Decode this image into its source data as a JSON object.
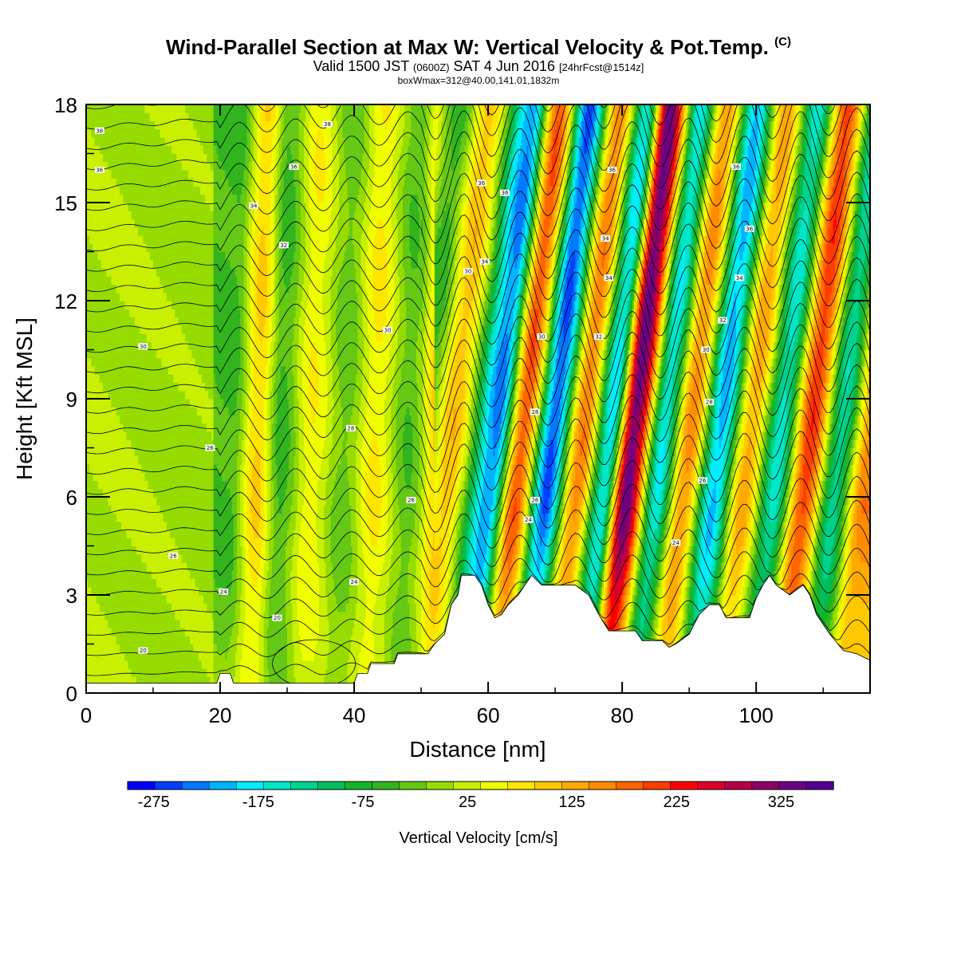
{
  "header": {
    "title": "Wind-Parallel Section at Max W: Vertical Velocity & Pot.Temp.",
    "copyright_mark": "(C)",
    "subtitle_a": "Valid 1500 JST",
    "subtitle_b": "(0600Z)",
    "subtitle_c": "SAT 4 Jun 2016",
    "subtitle_d": "[24hrFcst@1514z]",
    "subtitle_line3": "boxWmax=312@40.00,141.01,1832m"
  },
  "chart_data": {
    "type": "heatmap",
    "xlabel": "Distance [nm]",
    "ylabel": "Height [Kft MSL]",
    "xlim": [
      0,
      117
    ],
    "ylim": [
      0,
      18
    ],
    "x_ticks": [
      "0",
      "20",
      "40",
      "60",
      "80",
      "100"
    ],
    "y_ticks": [
      "0",
      "3",
      "6",
      "9",
      "12",
      "15",
      "18"
    ],
    "colorbar": {
      "label": "Vertical Velocity [cm/s]",
      "orientation": "horizontal",
      "range": [
        -300,
        375
      ],
      "step": 25,
      "tick_labels": [
        "-275",
        "-175",
        "-75",
        "25",
        "125",
        "225",
        "325"
      ],
      "colors": [
        "#0000ff",
        "#0040ff",
        "#0078ff",
        "#00b4ff",
        "#00ecff",
        "#00e6c8",
        "#00d28c",
        "#00be5a",
        "#14b428",
        "#32b41e",
        "#64c814",
        "#96dc00",
        "#c8f000",
        "#f0ff00",
        "#ffe600",
        "#ffc800",
        "#ffaa00",
        "#ff8c00",
        "#ff6400",
        "#ff3c00",
        "#ff0000",
        "#dc0028",
        "#b40046",
        "#8c0064",
        "#6e0082",
        "#550096"
      ]
    },
    "vertical_velocity_bands": [
      {
        "x": 0,
        "w": -5
      },
      {
        "x": 21,
        "w": -75
      },
      {
        "x": 25,
        "w": 100
      },
      {
        "x": 28.5,
        "w": -75
      },
      {
        "x": 33,
        "w": 60
      },
      {
        "x": 38,
        "w": -50
      },
      {
        "x": 42.5,
        "w": 70
      },
      {
        "x": 47.5,
        "w": -60
      },
      {
        "x": 52,
        "w": 90
      },
      {
        "x": 58.5,
        "w": -230
      },
      {
        "x": 62.5,
        "w": 170
      },
      {
        "x": 67,
        "w": -250
      },
      {
        "x": 71.5,
        "w": 140
      },
      {
        "x": 75.5,
        "w": -180
      },
      {
        "x": 79,
        "w": 312
      },
      {
        "x": 83.5,
        "w": -170
      },
      {
        "x": 87.5,
        "w": 130
      },
      {
        "x": 92,
        "w": -210
      },
      {
        "x": 96.5,
        "w": 110
      },
      {
        "x": 101,
        "w": -160
      },
      {
        "x": 105.5,
        "w": 190
      },
      {
        "x": 110,
        "w": -140
      },
      {
        "x": 114.5,
        "w": 140
      }
    ],
    "terrain_profile": [
      [
        0,
        0.3
      ],
      [
        19.5,
        0.3
      ],
      [
        20,
        0.6
      ],
      [
        21.5,
        0.6
      ],
      [
        22,
        0.3
      ],
      [
        40,
        0.3
      ],
      [
        40.5,
        0.6
      ],
      [
        42,
        0.6
      ],
      [
        42.5,
        0.9
      ],
      [
        46,
        0.9
      ],
      [
        46.5,
        1.2
      ],
      [
        51,
        1.2
      ],
      [
        52,
        1.5
      ],
      [
        53.5,
        1.8
      ],
      [
        54.5,
        2.7
      ],
      [
        55.5,
        3.0
      ],
      [
        56,
        3.6
      ],
      [
        58,
        3.6
      ],
      [
        59,
        3.3
      ],
      [
        60,
        2.7
      ],
      [
        61,
        2.3
      ],
      [
        62,
        2.4
      ],
      [
        63,
        2.7
      ],
      [
        64.5,
        3.0
      ],
      [
        65.5,
        3.3
      ],
      [
        66.5,
        3.6
      ],
      [
        68,
        3.3
      ],
      [
        73,
        3.3
      ],
      [
        75,
        3.0
      ],
      [
        76.5,
        2.4
      ],
      [
        78,
        1.9
      ],
      [
        82,
        1.9
      ],
      [
        83,
        1.6
      ],
      [
        86,
        1.6
      ],
      [
        87,
        1.4
      ],
      [
        88,
        1.5
      ],
      [
        90,
        1.8
      ],
      [
        91.5,
        2.4
      ],
      [
        93,
        2.7
      ],
      [
        94.5,
        2.7
      ],
      [
        95.5,
        2.3
      ],
      [
        99,
        2.3
      ],
      [
        100,
        2.9
      ],
      [
        101,
        3.3
      ],
      [
        102,
        3.6
      ],
      [
        103,
        3.3
      ],
      [
        105,
        3.0
      ],
      [
        107,
        3.3
      ],
      [
        108,
        3.0
      ],
      [
        109,
        2.4
      ],
      [
        111,
        1.8
      ],
      [
        113,
        1.3
      ],
      [
        115,
        1.2
      ],
      [
        117,
        1.0
      ]
    ],
    "theta_contour_labels": [
      {
        "text": "38",
        "x": 2,
        "y": 17.2
      },
      {
        "text": "36",
        "x": 2,
        "y": 16.0
      },
      {
        "text": "38",
        "x": 36,
        "y": 17.4
      },
      {
        "text": "36",
        "x": 31,
        "y": 16.1
      },
      {
        "text": "34",
        "x": 25,
        "y": 14.9
      },
      {
        "text": "32",
        "x": 29.5,
        "y": 13.7
      },
      {
        "text": "30",
        "x": 8.5,
        "y": 10.6
      },
      {
        "text": "30",
        "x": 45,
        "y": 11.1
      },
      {
        "text": "28",
        "x": 39.5,
        "y": 8.1
      },
      {
        "text": "26",
        "x": 18.5,
        "y": 7.5
      },
      {
        "text": "26",
        "x": 48.5,
        "y": 5.9
      },
      {
        "text": "26",
        "x": 13,
        "y": 4.2
      },
      {
        "text": "24",
        "x": 20.5,
        "y": 3.1
      },
      {
        "text": "24",
        "x": 40,
        "y": 3.4
      },
      {
        "text": "20",
        "x": 28.5,
        "y": 2.3
      },
      {
        "text": "20",
        "x": 8.5,
        "y": 1.3
      },
      {
        "text": "36",
        "x": 59,
        "y": 15.6
      },
      {
        "text": "36",
        "x": 62.5,
        "y": 15.3
      },
      {
        "text": "34",
        "x": 59.5,
        "y": 13.2
      },
      {
        "text": "30",
        "x": 57,
        "y": 12.9
      },
      {
        "text": "30",
        "x": 68,
        "y": 10.9
      },
      {
        "text": "28",
        "x": 67,
        "y": 8.6
      },
      {
        "text": "26",
        "x": 67,
        "y": 5.9
      },
      {
        "text": "24",
        "x": 66,
        "y": 5.3
      },
      {
        "text": "36",
        "x": 78.5,
        "y": 16.0
      },
      {
        "text": "34",
        "x": 77.5,
        "y": 13.9
      },
      {
        "text": "34",
        "x": 78,
        "y": 12.7
      },
      {
        "text": "32",
        "x": 76.5,
        "y": 10.9
      },
      {
        "text": "36",
        "x": 97,
        "y": 16.1
      },
      {
        "text": "36",
        "x": 99,
        "y": 14.2
      },
      {
        "text": "34",
        "x": 97.5,
        "y": 12.7
      },
      {
        "text": "32",
        "x": 95,
        "y": 11.4
      },
      {
        "text": "30",
        "x": 92.5,
        "y": 10.5
      },
      {
        "text": "28",
        "x": 93,
        "y": 8.9
      },
      {
        "text": "26",
        "x": 92,
        "y": 6.5
      },
      {
        "text": "24",
        "x": 88,
        "y": 4.6
      }
    ]
  }
}
